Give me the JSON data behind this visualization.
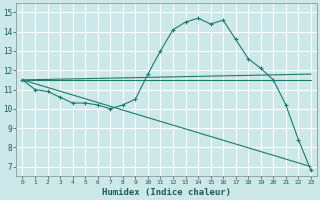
{
  "xlabel": "Humidex (Indice chaleur)",
  "ylabel": "",
  "bg_color": "#cce8e8",
  "grid_color": "#ffffff",
  "line_color": "#1a7a6e",
  "xlim": [
    -0.5,
    23.5
  ],
  "ylim": [
    6.5,
    15.5
  ],
  "xticks": [
    0,
    1,
    2,
    3,
    4,
    5,
    6,
    7,
    8,
    9,
    10,
    11,
    12,
    13,
    14,
    15,
    16,
    17,
    18,
    19,
    20,
    21,
    22,
    23
  ],
  "yticks": [
    7,
    8,
    9,
    10,
    11,
    12,
    13,
    14,
    15
  ],
  "series": [
    {
      "x": [
        0,
        1,
        2,
        3,
        4,
        5,
        6,
        7,
        8,
        9,
        10,
        11,
        12,
        13,
        14,
        15,
        16,
        17,
        18,
        19,
        20,
        21,
        22,
        23
      ],
      "y": [
        11.5,
        11.0,
        10.9,
        10.6,
        10.3,
        10.3,
        10.2,
        10.0,
        10.2,
        10.5,
        11.8,
        13.0,
        14.1,
        14.5,
        14.7,
        14.4,
        14.6,
        13.6,
        12.6,
        12.1,
        11.5,
        10.2,
        8.4,
        6.8
      ],
      "marker": "+"
    },
    {
      "x": [
        0,
        23
      ],
      "y": [
        11.5,
        11.5
      ],
      "marker": null
    },
    {
      "x": [
        0,
        23
      ],
      "y": [
        11.5,
        11.8
      ],
      "marker": null
    },
    {
      "x": [
        0,
        23
      ],
      "y": [
        11.5,
        7.0
      ],
      "marker": null
    }
  ]
}
